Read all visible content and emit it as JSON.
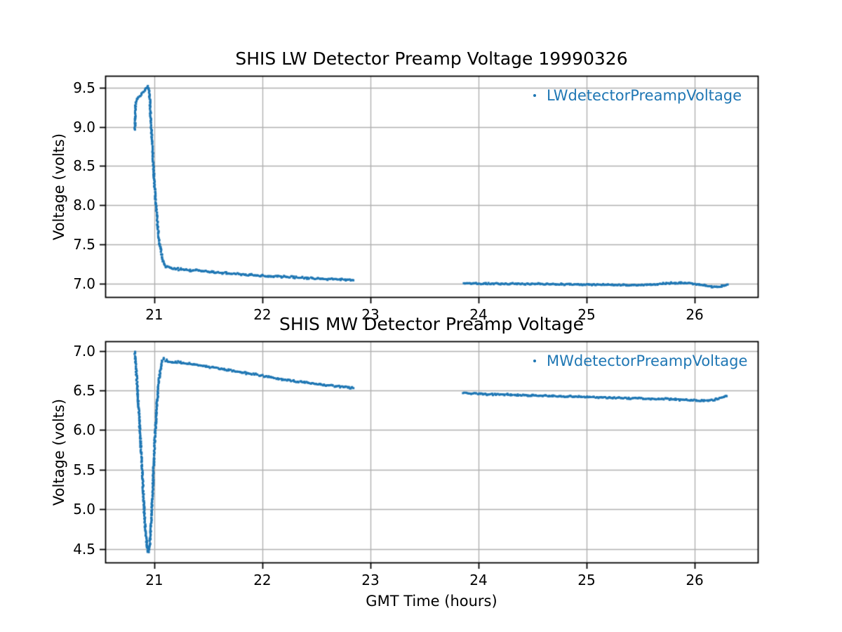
{
  "figure": {
    "background": "#ffffff",
    "text_color": "#000000",
    "grid_color": "#b0b0b0",
    "spine_color": "#000000",
    "accent_color": "#1f77b4"
  },
  "chart_data": [
    {
      "type": "scatter",
      "title": "SHIS LW Detector Preamp Voltage 19990326",
      "xlabel": "",
      "ylabel": "Voltage (volts)",
      "legend": {
        "label": "LWdetectorPreampVoltage",
        "position": "upper right",
        "marker": "point",
        "color": "#1f77b4"
      },
      "grid": true,
      "xlim": [
        20.546,
        26.584
      ],
      "ylim": [
        6.83,
        9.65
      ],
      "xticks": [
        21,
        22,
        23,
        24,
        25,
        26
      ],
      "xtick_labels": [
        "21",
        "22",
        "23",
        "24",
        "25",
        "26"
      ],
      "yticks": [
        7.0,
        7.5,
        8.0,
        8.5,
        9.0,
        9.5
      ],
      "ytick_labels": [
        "7.0",
        "7.5",
        "8.0",
        "8.5",
        "9.0",
        "9.5"
      ],
      "series": [
        {
          "name": "LWdetectorPreampVoltage",
          "color": "#1f77b4",
          "marker": "point",
          "segments": [
            {
              "noise": 0.016,
              "x": [
                20.82,
                20.823,
                20.827,
                20.835,
                20.85,
                20.87,
                20.89,
                20.91,
                20.925,
                20.94,
                20.95,
                20.958,
                20.965,
                20.975,
                20.985,
                21.0,
                21.015,
                21.03,
                21.045,
                21.06,
                21.075,
                21.09,
                21.11,
                21.14,
                21.2,
                21.3,
                21.45,
                21.6,
                21.75,
                21.9,
                22.1,
                22.3,
                22.5,
                22.65,
                22.78,
                22.85
              ],
              "y": [
                8.97,
                9.1,
                9.28,
                9.33,
                9.37,
                9.4,
                9.43,
                9.46,
                9.5,
                9.52,
                9.47,
                9.35,
                9.15,
                8.9,
                8.65,
                8.3,
                8.0,
                7.75,
                7.55,
                7.42,
                7.32,
                7.26,
                7.22,
                7.2,
                7.19,
                7.175,
                7.16,
                7.14,
                7.125,
                7.11,
                7.095,
                7.08,
                7.065,
                7.055,
                7.048,
                7.045
              ]
            },
            {
              "noise": 0.012,
              "x": [
                23.86,
                24.0,
                24.2,
                24.4,
                24.6,
                24.8,
                25.0,
                25.2,
                25.4,
                25.55,
                25.65,
                25.75,
                25.85,
                25.95,
                26.03,
                26.1,
                26.17,
                26.23,
                26.28,
                26.31
              ],
              "y": [
                7.005,
                7.0,
                7.0,
                6.998,
                6.995,
                6.992,
                6.99,
                6.988,
                6.985,
                6.982,
                6.995,
                7.008,
                7.01,
                7.005,
                6.99,
                6.975,
                6.96,
                6.958,
                6.975,
                6.995
              ]
            }
          ]
        }
      ]
    },
    {
      "type": "scatter",
      "title": "SHIS MW Detector Preamp Voltage",
      "xlabel": "GMT Time (hours)",
      "ylabel": "Voltage (volts)",
      "legend": {
        "label": "MWdetectorPreampVoltage",
        "position": "upper right",
        "marker": "point",
        "color": "#1f77b4"
      },
      "grid": true,
      "xlim": [
        20.546,
        26.584
      ],
      "ylim": [
        4.33,
        7.12
      ],
      "xticks": [
        21,
        22,
        23,
        24,
        25,
        26
      ],
      "xtick_labels": [
        "21",
        "22",
        "23",
        "24",
        "25",
        "26"
      ],
      "yticks": [
        4.5,
        5.0,
        5.5,
        6.0,
        6.5,
        7.0
      ],
      "ytick_labels": [
        "4.5",
        "5.0",
        "5.5",
        "6.0",
        "6.5",
        "7.0"
      ],
      "series": [
        {
          "name": "MWdetectorPreampVoltage",
          "color": "#1f77b4",
          "marker": "point",
          "segments": [
            {
              "noise": 0.015,
              "x": [
                20.82,
                20.83,
                20.845,
                20.86,
                20.875,
                20.89,
                20.9,
                20.912,
                20.925,
                20.935,
                20.945,
                20.955,
                20.965,
                20.978,
                20.99,
                21.0,
                21.012,
                21.025,
                21.04,
                21.055,
                21.07,
                21.085,
                21.1,
                21.13,
                21.17,
                21.22,
                21.28,
                21.35,
                21.42,
                21.5,
                21.58,
                21.68,
                21.8,
                21.95,
                22.1,
                22.25,
                22.4,
                22.55,
                22.7,
                22.8,
                22.85
              ],
              "y": [
                6.99,
                6.8,
                6.5,
                6.15,
                5.8,
                5.45,
                5.15,
                4.85,
                4.62,
                4.5,
                4.46,
                4.52,
                4.7,
                5.0,
                5.4,
                5.75,
                6.05,
                6.35,
                6.6,
                6.75,
                6.85,
                6.9,
                6.88,
                6.87,
                6.85,
                6.86,
                6.84,
                6.83,
                6.815,
                6.8,
                6.785,
                6.76,
                6.73,
                6.7,
                6.66,
                6.625,
                6.6,
                6.575,
                6.55,
                6.535,
                6.53
              ]
            },
            {
              "noise": 0.013,
              "x": [
                23.86,
                24.0,
                24.2,
                24.4,
                24.6,
                24.8,
                25.0,
                25.2,
                25.35,
                25.5,
                25.6,
                25.7,
                25.8,
                25.9,
                26.0,
                26.1,
                26.18,
                26.25,
                26.3,
                26.31
              ],
              "y": [
                6.465,
                6.455,
                6.45,
                6.44,
                6.435,
                6.425,
                6.42,
                6.41,
                6.405,
                6.4,
                6.39,
                6.395,
                6.39,
                6.38,
                6.375,
                6.37,
                6.38,
                6.41,
                6.43,
                6.44
              ]
            }
          ]
        }
      ]
    }
  ]
}
